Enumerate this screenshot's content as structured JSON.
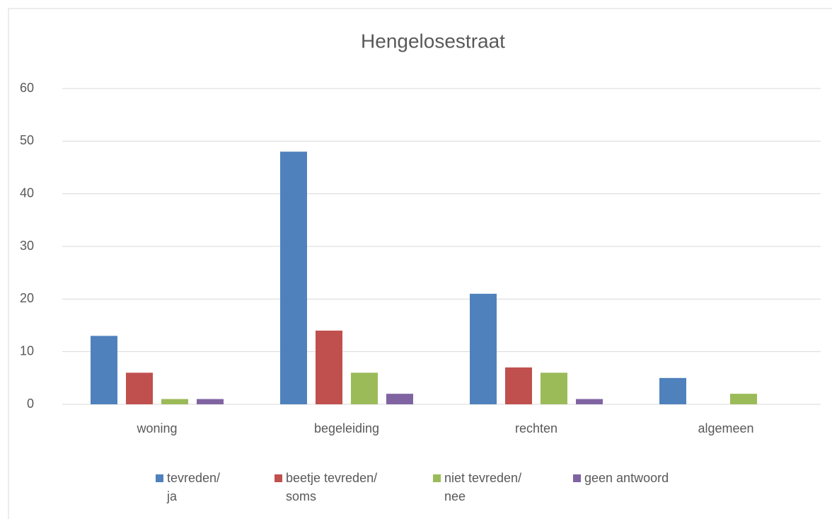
{
  "chart_data": {
    "type": "bar",
    "title": "Hengelosestraat",
    "categories": [
      "woning",
      "begeleiding",
      "rechten",
      "algemeen"
    ],
    "series": [
      {
        "name": "tevreden/ ja",
        "color": "#4f81bd",
        "values": [
          13,
          48,
          21,
          5
        ]
      },
      {
        "name": "beetje tevreden/ soms",
        "color": "#c0504d",
        "values": [
          6,
          14,
          7,
          0
        ]
      },
      {
        "name": "niet tevreden/ nee",
        "color": "#9bbb59",
        "values": [
          1,
          6,
          6,
          2
        ]
      },
      {
        "name": "geen antwoord",
        "color": "#8064a2",
        "values": [
          1,
          2,
          1,
          0
        ]
      }
    ],
    "ylim": [
      0,
      60
    ],
    "yticks": [
      0,
      10,
      20,
      30,
      40,
      50,
      60
    ],
    "grid": true,
    "legend": "bottom"
  }
}
